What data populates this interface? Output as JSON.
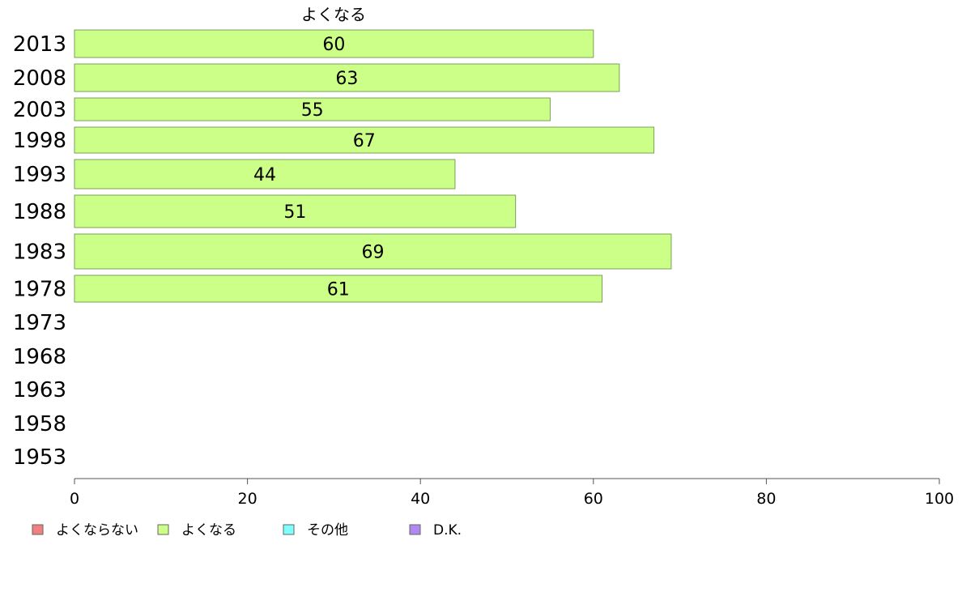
{
  "chart_data": {
    "type": "bar",
    "orientation": "horizontal",
    "title": "",
    "xlabel": "",
    "ylabel": "",
    "xlim": [
      0,
      100
    ],
    "x_ticks": [
      0,
      20,
      40,
      60,
      80,
      100
    ],
    "grid": false,
    "legend_position": "bottom-left",
    "plotted_series_label": "よくなる",
    "categories": [
      "2013",
      "2008",
      "2003",
      "1998",
      "1993",
      "1988",
      "1983",
      "1978",
      "1973",
      "1968",
      "1963",
      "1958",
      "1953"
    ],
    "series": [
      {
        "name": "よくなる",
        "color": "#ccff88",
        "values": [
          60,
          63,
          55,
          67,
          44,
          51,
          69,
          61,
          null,
          null,
          null,
          null,
          null
        ]
      }
    ],
    "legend": [
      {
        "label": "よくならない",
        "color": "#f08080"
      },
      {
        "label": "よくなる",
        "color": "#ccff88"
      },
      {
        "label": "その他",
        "color": "#80ffff"
      },
      {
        "label": "D.K.",
        "color": "#b088f0"
      }
    ]
  }
}
